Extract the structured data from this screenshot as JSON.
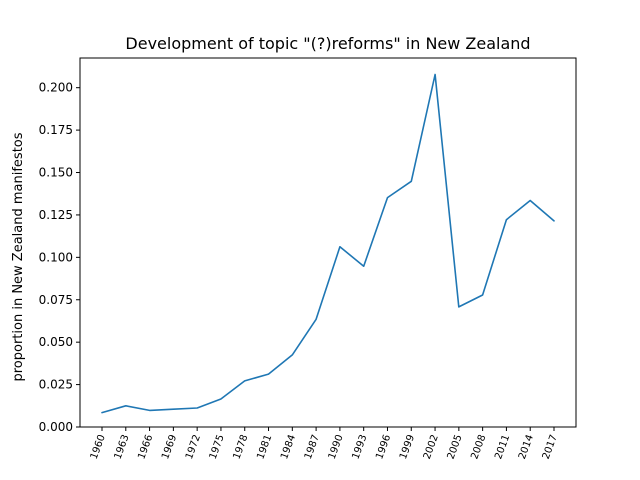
{
  "chart_data": {
    "type": "line",
    "title": "Development of topic \"(?)reforms\" in New Zealand",
    "xlabel": "",
    "ylabel": "proportion in New Zealand manifestos",
    "categories": [
      "1960",
      "1963",
      "1966",
      "1969",
      "1972",
      "1975",
      "1978",
      "1981",
      "1984",
      "1987",
      "1990",
      "1993",
      "1996",
      "1999",
      "2002",
      "2005",
      "2008",
      "2011",
      "2014",
      "2017"
    ],
    "series": [
      {
        "values": [
          0.0085,
          0.0125,
          0.0098,
          0.0105,
          0.0112,
          0.0165,
          0.0272,
          0.0312,
          0.0425,
          0.0635,
          0.1062,
          0.0948,
          0.1352,
          0.1448,
          0.2078,
          0.0708,
          0.0778,
          0.1222,
          0.1335,
          0.1215
        ]
      }
    ],
    "ylim": [
      0.0,
      0.2175
    ],
    "yticks": [
      "0.000",
      "0.025",
      "0.050",
      "0.075",
      "0.100",
      "0.125",
      "0.150",
      "0.175",
      "0.200"
    ],
    "grid": false,
    "colors": {
      "line": "#1f77b4",
      "axes": "#000000",
      "background": "#ffffff"
    }
  }
}
